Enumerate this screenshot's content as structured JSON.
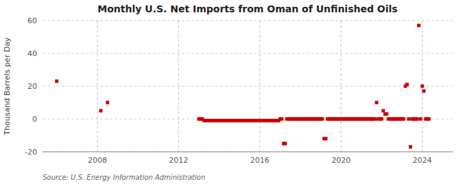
{
  "chart_data": {
    "type": "scatter",
    "title": "Monthly U.S. Net Imports from Oman of Unfinished Oils",
    "ylabel": "Thousand Barrels per Day",
    "source": "Source: U.S. Energy Information Administration",
    "color": "#cc0000",
    "marker": "square",
    "grid": true,
    "xlim": [
      2005.3,
      2025.5
    ],
    "xticks": [
      2008,
      2012,
      2016,
      2020,
      2024
    ],
    "ylim": [
      -20,
      60
    ],
    "yticks": [
      -20,
      0,
      20,
      40,
      60
    ],
    "x": [
      2006.0,
      2008.17,
      2008.5,
      2013.0,
      2013.08,
      2013.17,
      2013.25,
      2013.33,
      2013.42,
      2013.5,
      2013.58,
      2013.67,
      2013.75,
      2013.83,
      2013.92,
      2014.0,
      2014.08,
      2014.17,
      2014.25,
      2014.33,
      2014.42,
      2014.5,
      2014.58,
      2014.67,
      2014.75,
      2014.83,
      2014.92,
      2015.0,
      2015.08,
      2015.17,
      2015.25,
      2015.33,
      2015.42,
      2015.5,
      2015.58,
      2015.67,
      2015.75,
      2015.83,
      2015.92,
      2016.0,
      2016.08,
      2016.17,
      2016.25,
      2016.33,
      2016.42,
      2016.5,
      2016.58,
      2016.67,
      2016.75,
      2016.83,
      2016.92,
      2017.0,
      2017.08,
      2017.17,
      2017.25,
      2017.33,
      2017.42,
      2017.5,
      2017.58,
      2017.67,
      2017.75,
      2017.83,
      2017.92,
      2018.0,
      2018.08,
      2018.17,
      2018.25,
      2018.33,
      2018.42,
      2018.5,
      2018.58,
      2018.67,
      2018.75,
      2018.83,
      2018.92,
      2019.0,
      2019.08,
      2019.17,
      2019.25,
      2019.33,
      2019.42,
      2019.5,
      2019.58,
      2019.67,
      2019.75,
      2019.83,
      2019.92,
      2020.0,
      2020.08,
      2020.17,
      2020.25,
      2020.33,
      2020.42,
      2020.5,
      2020.58,
      2020.67,
      2020.75,
      2020.83,
      2020.92,
      2021.0,
      2021.08,
      2021.17,
      2021.25,
      2021.33,
      2021.42,
      2021.5,
      2021.58,
      2021.67,
      2021.75,
      2021.83,
      2021.92,
      2022.0,
      2022.08,
      2022.17,
      2022.25,
      2022.33,
      2022.42,
      2022.5,
      2022.58,
      2022.67,
      2022.75,
      2022.83,
      2022.92,
      2023.0,
      2023.08,
      2023.17,
      2023.25,
      2023.33,
      2023.42,
      2023.5,
      2023.58,
      2023.67,
      2023.75,
      2023.83,
      2023.92,
      2024.0,
      2024.08,
      2024.17,
      2024.25,
      2024.33
    ],
    "values": [
      23,
      5,
      10,
      0,
      0,
      0,
      -1,
      -1,
      -1,
      -1,
      -1,
      -1,
      -1,
      -1,
      -1,
      -1,
      -1,
      -1,
      -1,
      -1,
      -1,
      -1,
      -1,
      -1,
      -1,
      -1,
      -1,
      -1,
      -1,
      -1,
      -1,
      -1,
      -1,
      -1,
      -1,
      -1,
      -1,
      -1,
      -1,
      -1,
      -1,
      -1,
      -1,
      -1,
      -1,
      -1,
      -1,
      -1,
      -1,
      -1,
      -1,
      0,
      0,
      -15,
      -15,
      0,
      0,
      0,
      0,
      0,
      0,
      0,
      0,
      0,
      0,
      0,
      0,
      0,
      0,
      0,
      0,
      0,
      0,
      0,
      0,
      0,
      0,
      -12,
      -12,
      0,
      0,
      0,
      0,
      0,
      0,
      0,
      0,
      0,
      0,
      0,
      0,
      0,
      0,
      0,
      0,
      0,
      0,
      0,
      0,
      0,
      0,
      0,
      0,
      0,
      0,
      0,
      0,
      0,
      10,
      0,
      0,
      0,
      5,
      3,
      3,
      0,
      0,
      0,
      0,
      0,
      0,
      0,
      0,
      0,
      0,
      20,
      21,
      0,
      -17,
      0,
      0,
      0,
      0,
      57,
      0,
      20,
      17,
      0,
      0,
      0
    ]
  }
}
